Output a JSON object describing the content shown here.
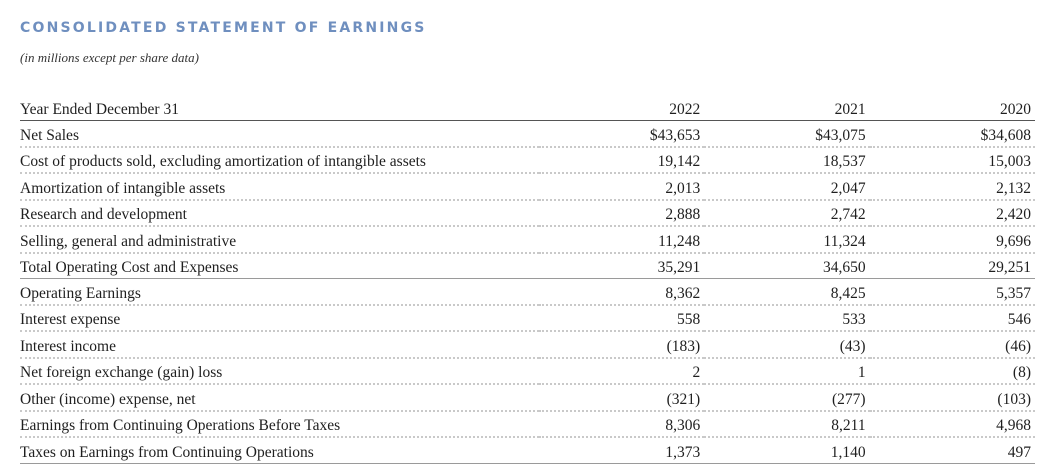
{
  "title": "CONSOLIDATED STATEMENT OF EARNINGS",
  "subtitle": "(in millions except per share data)",
  "table": {
    "header_label": "Year Ended December 31",
    "years": [
      "2022",
      "2021",
      "2020"
    ],
    "rows": [
      {
        "label": "Net Sales",
        "values": [
          "$43,653",
          "$43,075",
          "$34,608"
        ]
      },
      {
        "label": "Cost of products sold, excluding amortization of intangible assets",
        "values": [
          "19,142",
          "18,537",
          "15,003"
        ]
      },
      {
        "label": "Amortization of intangible assets",
        "values": [
          "2,013",
          "2,047",
          "2,132"
        ]
      },
      {
        "label": "Research and development",
        "values": [
          "2,888",
          "2,742",
          "2,420"
        ]
      },
      {
        "label": "Selling, general and administrative",
        "values": [
          "11,248",
          "11,324",
          "9,696"
        ]
      },
      {
        "label": "Total Operating Cost and Expenses",
        "values": [
          "35,291",
          "34,650",
          "29,251"
        ]
      },
      {
        "label": "Operating Earnings",
        "values": [
          "8,362",
          "8,425",
          "5,357"
        ]
      },
      {
        "label": "Interest expense",
        "values": [
          "558",
          "533",
          "546"
        ]
      },
      {
        "label": "Interest income",
        "values": [
          "(183)",
          "(43)",
          "(46)"
        ]
      },
      {
        "label": "Net foreign exchange (gain) loss",
        "values": [
          "2",
          "1",
          "(8)"
        ]
      },
      {
        "label": "Other (income) expense, net",
        "values": [
          "(321)",
          "(277)",
          "(103)"
        ]
      },
      {
        "label": "Earnings from Continuing Operations Before Taxes",
        "values": [
          "8,306",
          "8,211",
          "4,968"
        ]
      },
      {
        "label": "Taxes on Earnings from Continuing Operations",
        "values": [
          "1,373",
          "1,140",
          "497"
        ]
      }
    ]
  }
}
